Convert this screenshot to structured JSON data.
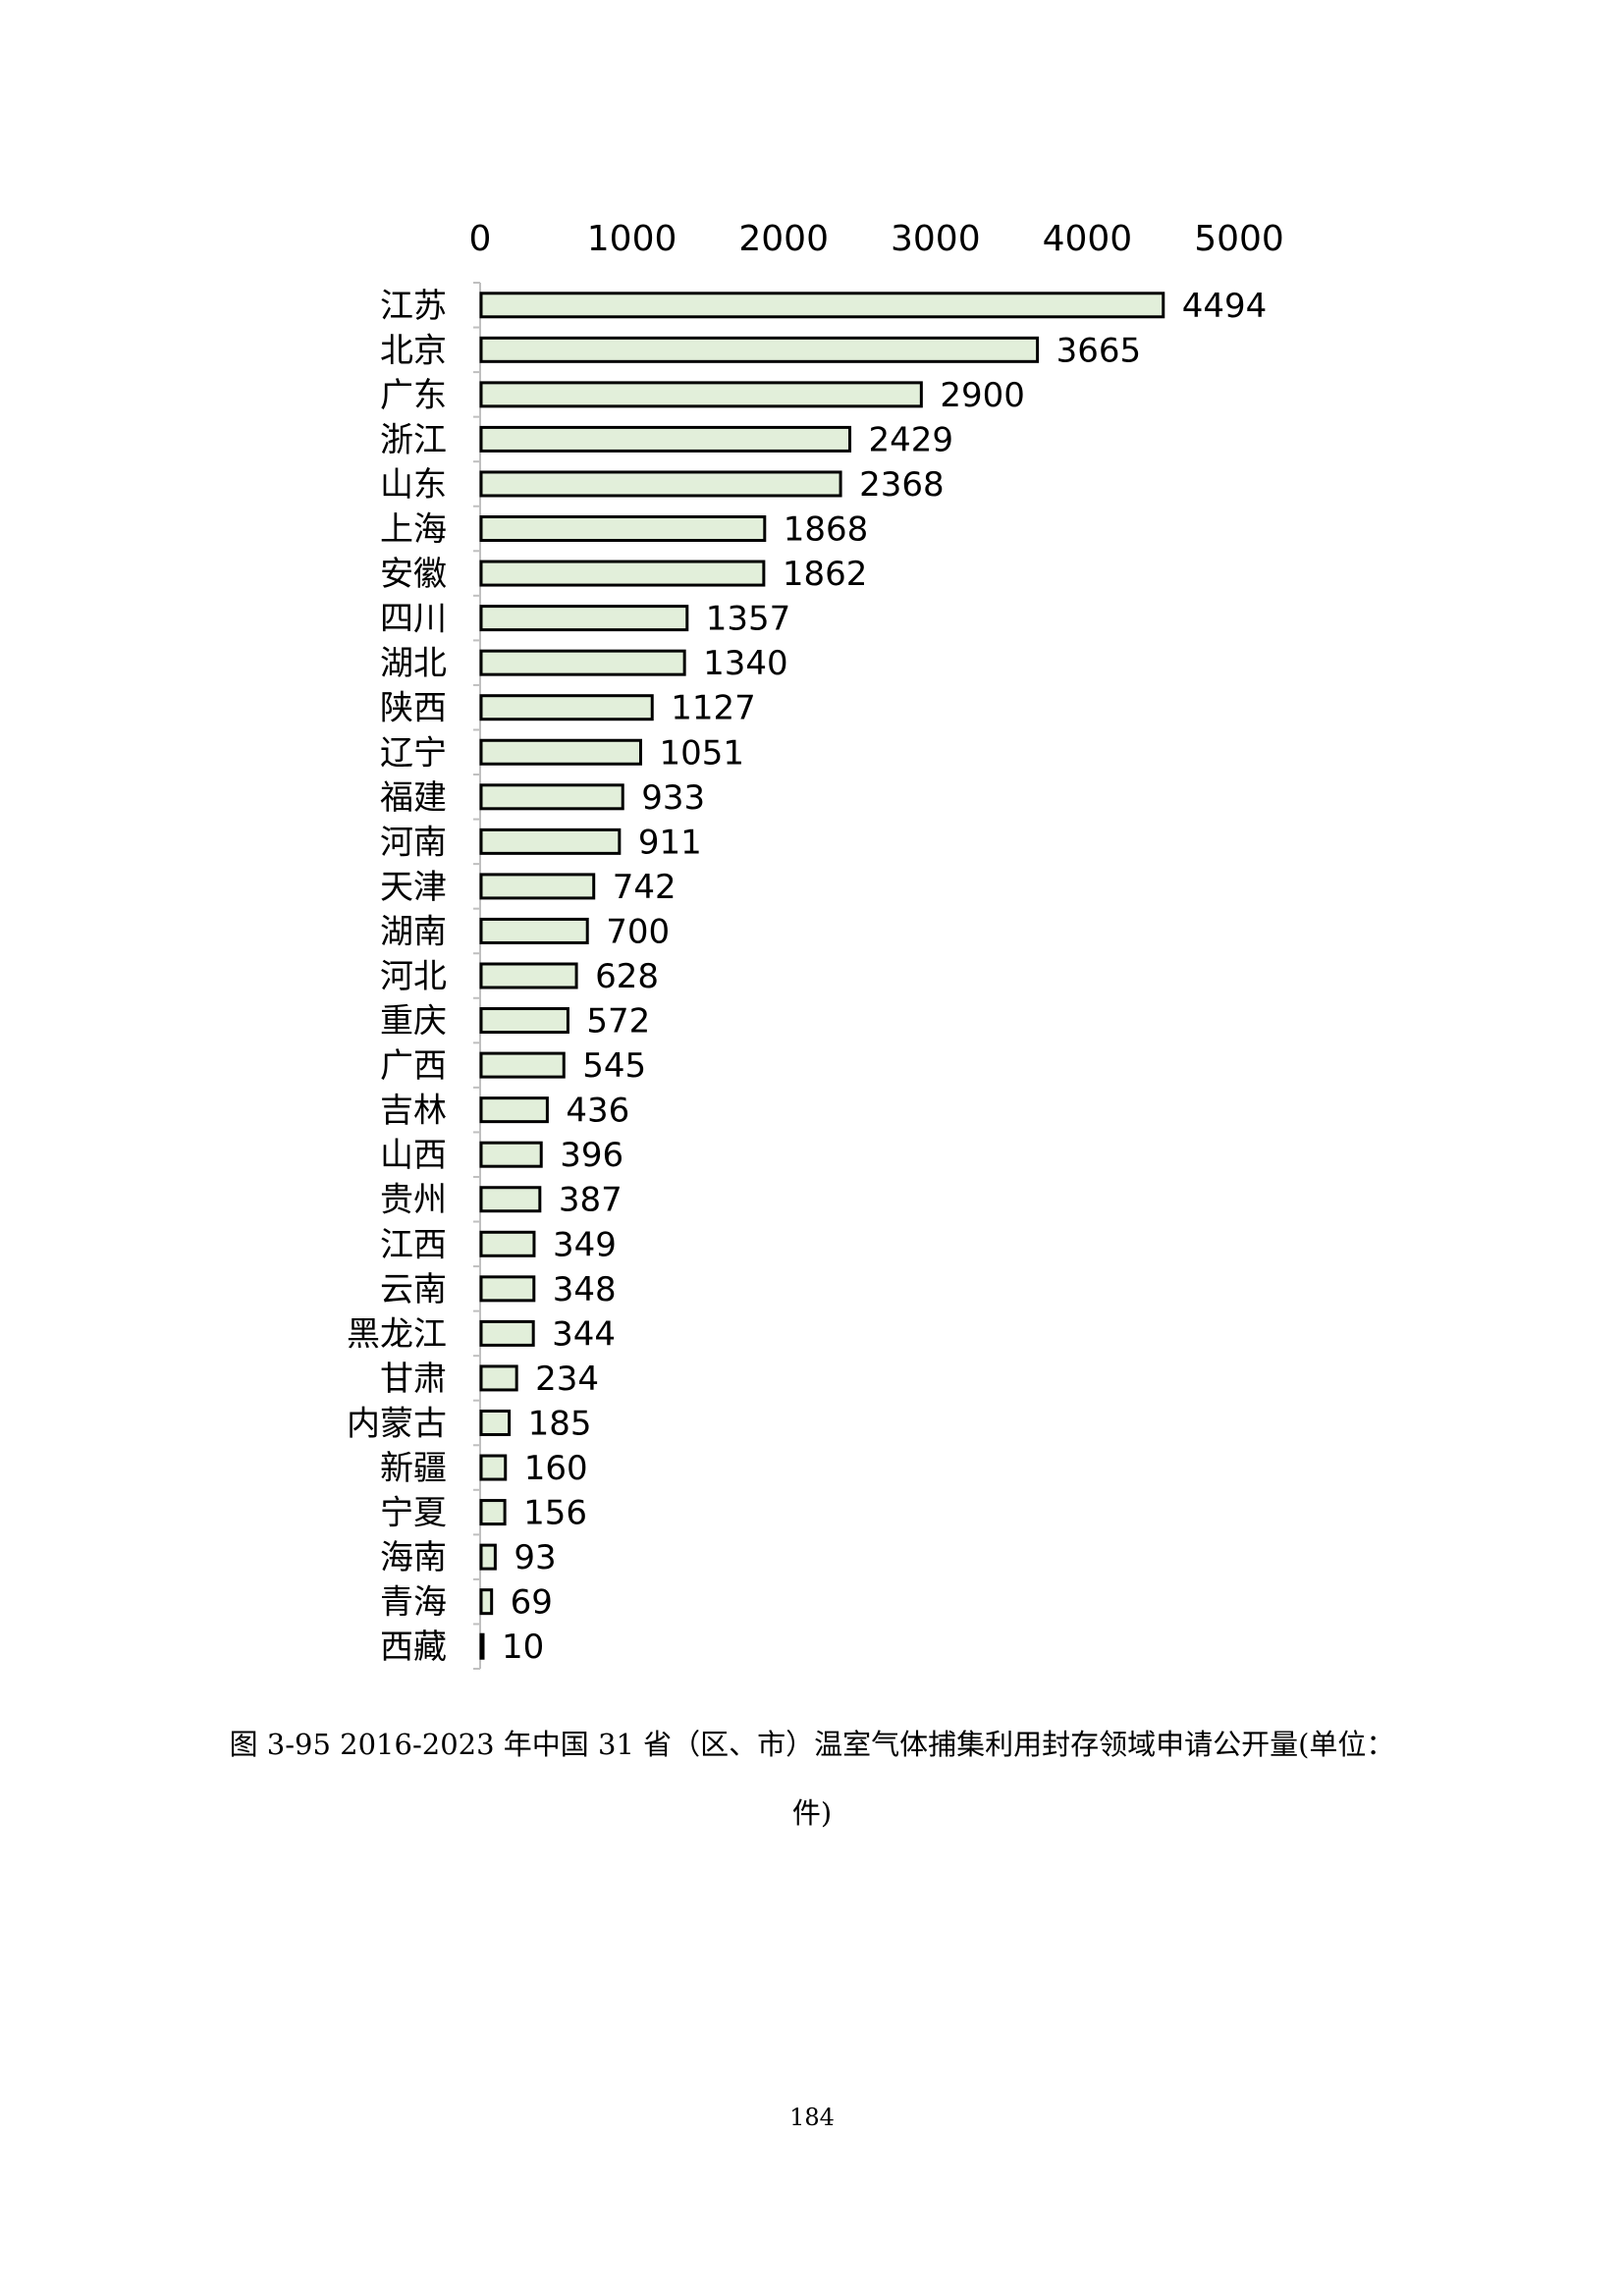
{
  "chart_data": {
    "type": "bar",
    "orientation": "horizontal",
    "categories": [
      "江苏",
      "北京",
      "广东",
      "浙江",
      "山东",
      "上海",
      "安徽",
      "四川",
      "湖北",
      "陕西",
      "辽宁",
      "福建",
      "河南",
      "天津",
      "湖南",
      "河北",
      "重庆",
      "广西",
      "吉林",
      "山西",
      "贵州",
      "江西",
      "云南",
      "黑龙江",
      "甘肃",
      "内蒙古",
      "新疆",
      "宁夏",
      "海南",
      "青海",
      "西藏"
    ],
    "values": [
      4494,
      3665,
      2900,
      2429,
      2368,
      1868,
      1862,
      1357,
      1340,
      1127,
      1051,
      933,
      911,
      742,
      700,
      628,
      572,
      545,
      436,
      396,
      387,
      349,
      348,
      344,
      234,
      185,
      160,
      156,
      93,
      69,
      10
    ],
    "xlim": [
      0,
      5000
    ],
    "xticks": [
      "0",
      "1000",
      "2000",
      "3000",
      "4000",
      "5000"
    ],
    "x_axis_position": "top",
    "data_labels": true,
    "grid": false,
    "legend": "none",
    "bar_color": "#e2efda",
    "bar_edge_color": "#000000"
  },
  "caption": {
    "line1": "图 3-95 2016-2023 年中国 31 省（区、市）温室气体捕集利用封存领域申请公开量(单位：",
    "line2": "件)"
  },
  "page_number": "184"
}
